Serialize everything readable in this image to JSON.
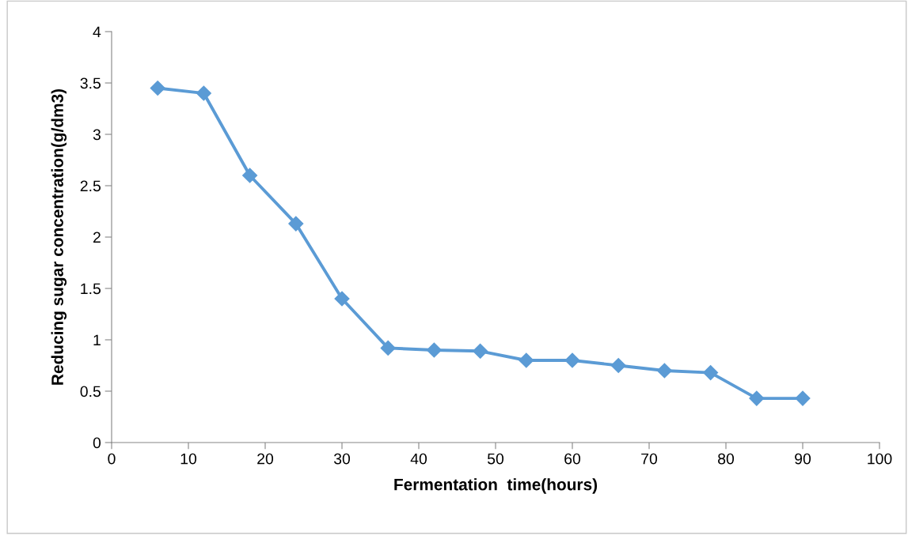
{
  "chart_data": {
    "type": "line",
    "xlabel": "Fermentation  time(hours)",
    "ylabel": "Reducing sugar concentration(g/dm3)",
    "x": [
      6,
      12,
      18,
      24,
      30,
      36,
      42,
      48,
      54,
      60,
      66,
      72,
      78,
      84,
      90
    ],
    "series": [
      {
        "color": "#5b9bd5",
        "values": [
          3.45,
          3.4,
          2.6,
          2.13,
          1.4,
          0.92,
          0.9,
          0.89,
          0.8,
          0.8,
          0.75,
          0.7,
          0.68,
          0.43,
          0.43
        ]
      }
    ],
    "xlim": [
      0,
      100
    ],
    "xticks": [
      0,
      10,
      20,
      30,
      40,
      50,
      60,
      70,
      80,
      90,
      100
    ],
    "ylim": [
      0,
      4
    ],
    "yticks": [
      0,
      0.5,
      1,
      1.5,
      2,
      2.5,
      3,
      3.5,
      4
    ],
    "marker": "diamond",
    "line_style": "solid",
    "grid": false,
    "legend": false
  }
}
